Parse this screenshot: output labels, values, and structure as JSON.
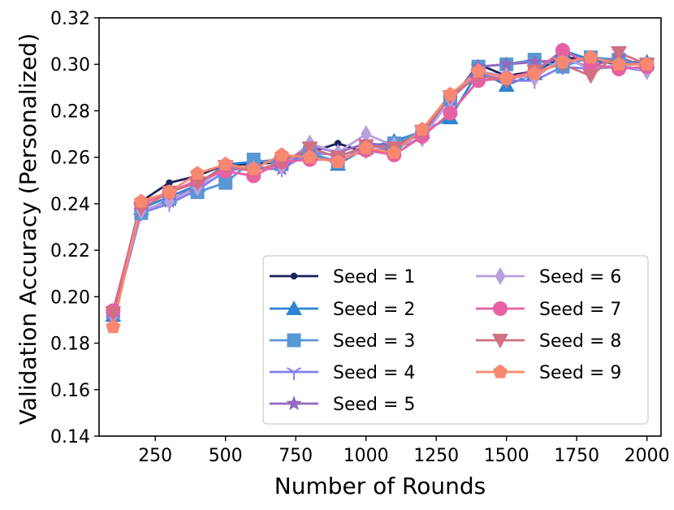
{
  "chart_data": {
    "type": "line",
    "title": "",
    "xlabel": "Number of Rounds",
    "ylabel": "Validation Accuracy (Personalized)",
    "xlim": [
      50,
      2050
    ],
    "ylim": [
      0.14,
      0.32
    ],
    "xticks": [
      250,
      500,
      750,
      1000,
      1250,
      1500,
      1750,
      2000
    ],
    "xtick_labels": [
      "250",
      "500",
      "750",
      "1000",
      "1250",
      "1500",
      "1750",
      "2000"
    ],
    "yticks": [
      0.14,
      0.16,
      0.18,
      0.2,
      0.22,
      0.24,
      0.26,
      0.28,
      0.3,
      0.32
    ],
    "ytick_labels": [
      "0.14",
      "0.16",
      "0.18",
      "0.20",
      "0.22",
      "0.24",
      "0.26",
      "0.28",
      "0.30",
      "0.32"
    ],
    "grid": false,
    "legend_position": "bottom-right",
    "legend_columns": 2,
    "x": [
      100,
      200,
      300,
      400,
      500,
      600,
      700,
      800,
      900,
      1000,
      1100,
      1200,
      1300,
      1400,
      1500,
      1600,
      1700,
      1800,
      1900,
      2000
    ],
    "series": [
      {
        "name": "Seed = 1",
        "color": "#1c2260",
        "marker": "circle-small",
        "values": [
          0.193,
          0.241,
          0.249,
          0.252,
          0.257,
          0.257,
          0.258,
          0.262,
          0.266,
          0.262,
          0.264,
          0.272,
          0.284,
          0.3,
          0.295,
          0.297,
          0.303,
          0.302,
          0.3,
          0.3
        ]
      },
      {
        "name": "Seed = 2",
        "color": "#2e86d0",
        "marker": "triangle-up",
        "values": [
          0.192,
          0.238,
          0.243,
          0.248,
          0.257,
          0.258,
          0.259,
          0.262,
          0.257,
          0.264,
          0.267,
          0.271,
          0.277,
          0.297,
          0.291,
          0.296,
          0.306,
          0.302,
          0.301,
          0.301
        ]
      },
      {
        "name": "Seed = 3",
        "color": "#5898d4",
        "marker": "square",
        "values": [
          0.193,
          0.236,
          0.242,
          0.245,
          0.249,
          0.259,
          0.257,
          0.262,
          0.258,
          0.264,
          0.266,
          0.271,
          0.285,
          0.299,
          0.3,
          0.302,
          0.299,
          0.303,
          0.302,
          0.3
        ]
      },
      {
        "name": "Seed = 4",
        "color": "#8080ee",
        "marker": "tri-down",
        "values": [
          0.19,
          0.236,
          0.24,
          0.246,
          0.254,
          0.256,
          0.255,
          0.262,
          0.261,
          0.263,
          0.264,
          0.268,
          0.285,
          0.296,
          0.293,
          0.293,
          0.299,
          0.298,
          0.299,
          0.297
        ]
      },
      {
        "name": "Seed = 5",
        "color": "#9468c0",
        "marker": "star",
        "values": [
          0.192,
          0.237,
          0.241,
          0.248,
          0.256,
          0.255,
          0.255,
          0.265,
          0.262,
          0.266,
          0.265,
          0.27,
          0.285,
          0.299,
          0.3,
          0.301,
          0.302,
          0.299,
          0.303,
          0.299
        ]
      },
      {
        "name": "Seed = 6",
        "color": "#b8a0e0",
        "marker": "thin-diamond",
        "values": [
          0.192,
          0.237,
          0.241,
          0.247,
          0.256,
          0.255,
          0.256,
          0.266,
          0.262,
          0.27,
          0.265,
          0.268,
          0.285,
          0.297,
          0.295,
          0.294,
          0.303,
          0.298,
          0.3,
          0.297
        ]
      },
      {
        "name": "Seed = 7",
        "color": "#e660a4",
        "marker": "circle",
        "values": [
          0.194,
          0.24,
          0.245,
          0.25,
          0.254,
          0.252,
          0.258,
          0.259,
          0.259,
          0.263,
          0.261,
          0.269,
          0.279,
          0.293,
          0.294,
          0.297,
          0.306,
          0.3,
          0.298,
          0.299
        ]
      },
      {
        "name": "Seed = 8",
        "color": "#d07080",
        "marker": "triangle-down",
        "values": [
          0.193,
          0.238,
          0.245,
          0.249,
          0.256,
          0.254,
          0.258,
          0.264,
          0.26,
          0.265,
          0.264,
          0.271,
          0.286,
          0.295,
          0.293,
          0.297,
          0.3,
          0.295,
          0.305,
          0.3
        ]
      },
      {
        "name": "Seed = 9",
        "color": "#f88870",
        "marker": "pentagon",
        "values": [
          0.187,
          0.241,
          0.245,
          0.253,
          0.257,
          0.255,
          0.261,
          0.26,
          0.258,
          0.264,
          0.262,
          0.272,
          0.287,
          0.297,
          0.294,
          0.296,
          0.301,
          0.303,
          0.3,
          0.3
        ]
      }
    ]
  }
}
